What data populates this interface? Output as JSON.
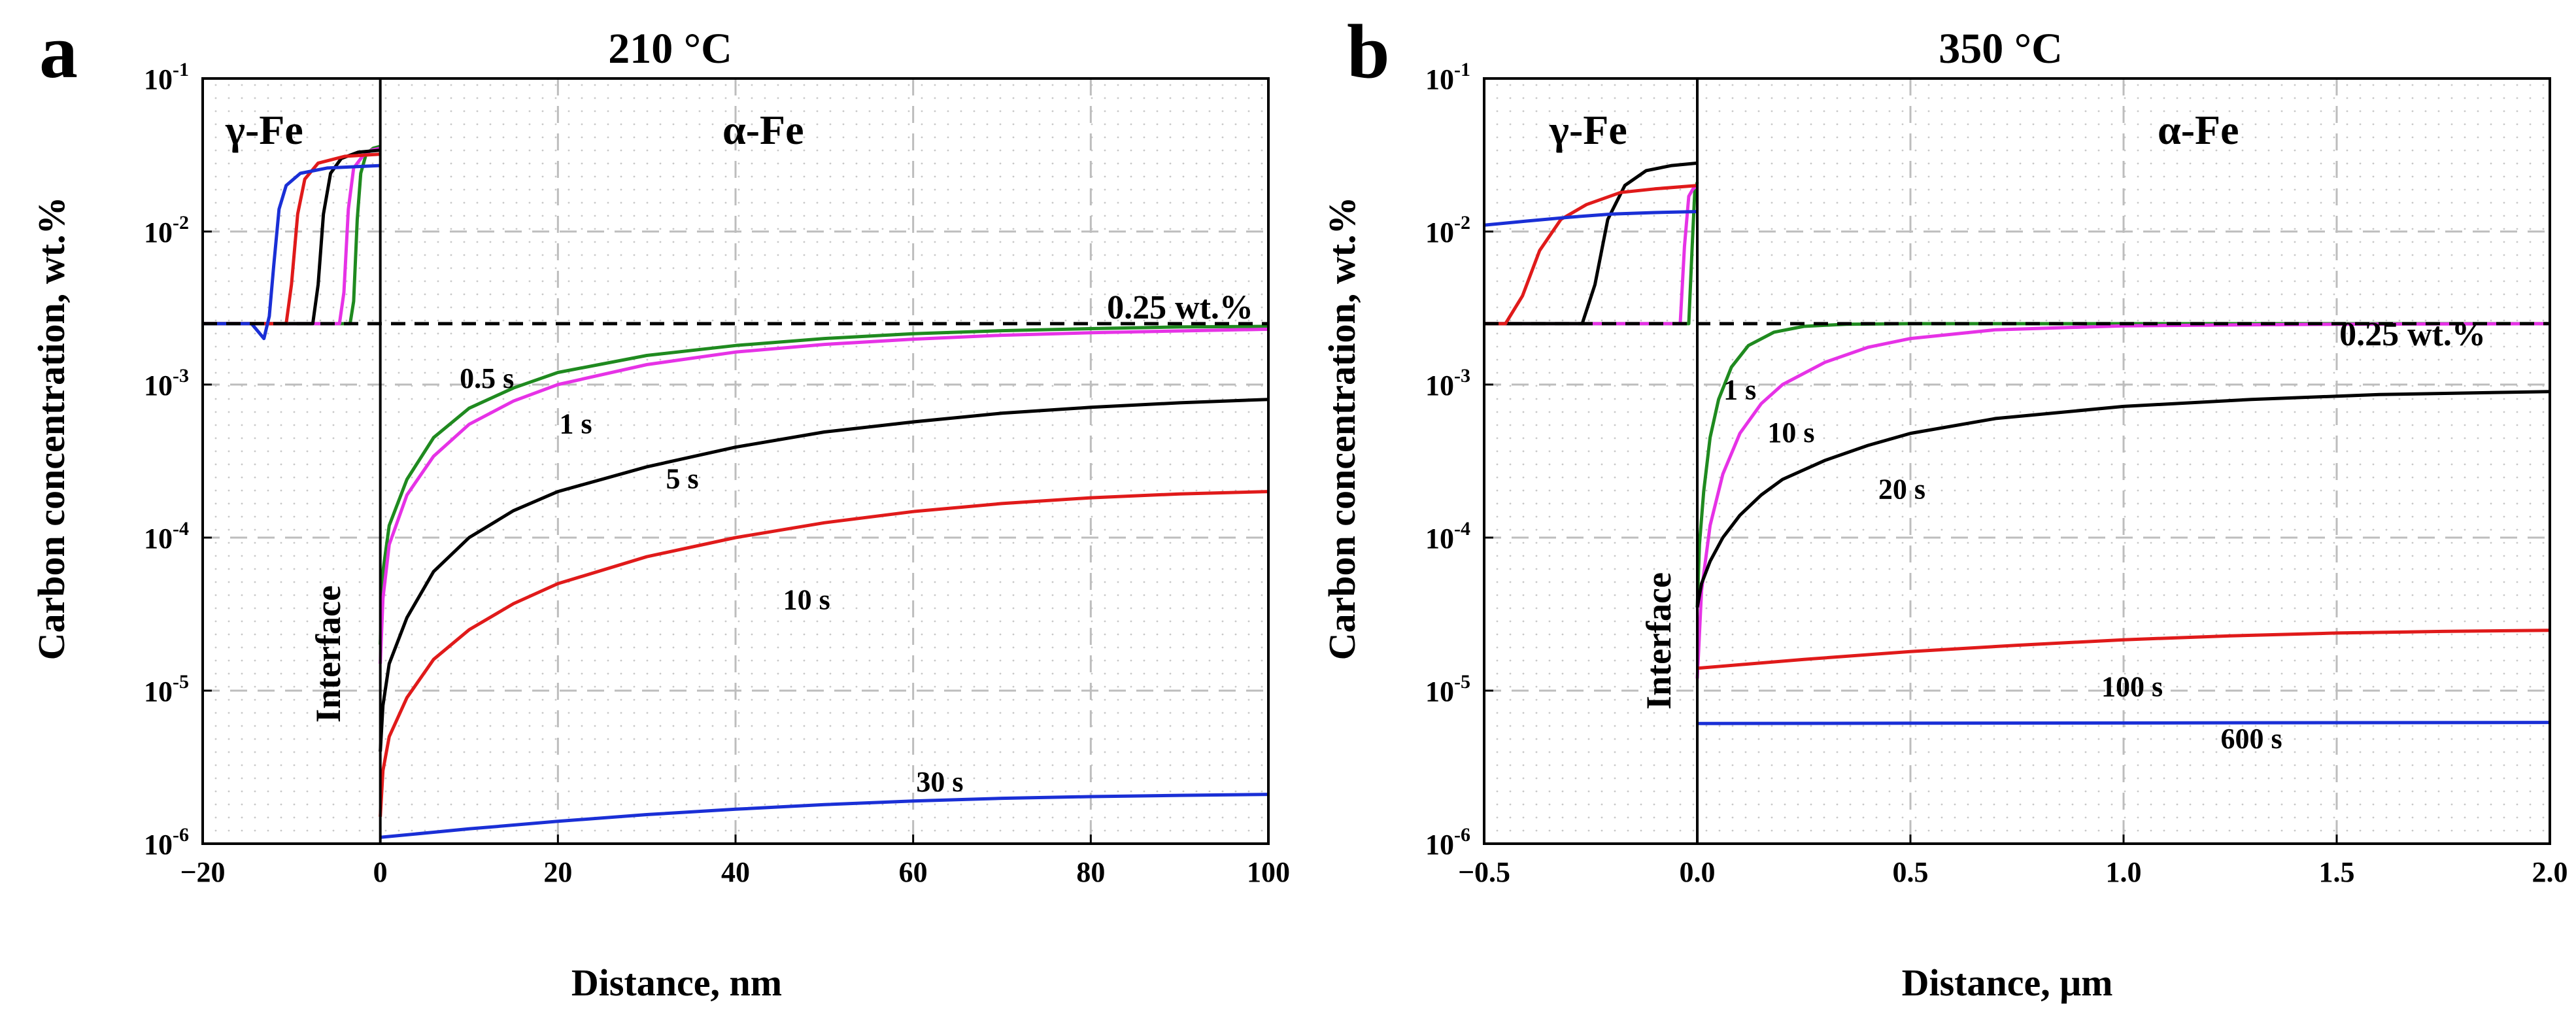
{
  "chart_data": [
    {
      "type": "line",
      "panel_letter": "a",
      "title": "210 °C",
      "xlabel": "Distance, nm",
      "ylabel": "Carbon concentration, wt.%",
      "xlim": [
        -20,
        100
      ],
      "ylim": [
        1e-06,
        0.1
      ],
      "y_scale": "log",
      "x_ticks": [
        -20,
        0,
        20,
        40,
        60,
        80,
        100
      ],
      "x_tick_labels": [
        "−20",
        "0",
        "20",
        "40",
        "60",
        "80",
        "100"
      ],
      "y_tick_labels": [
        {
          "base": "10",
          "exp": "-6"
        },
        {
          "base": "10",
          "exp": "-5"
        },
        {
          "base": "10",
          "exp": "-4"
        },
        {
          "base": "10",
          "exp": "-3"
        },
        {
          "base": "10",
          "exp": "-2"
        },
        {
          "base": "10",
          "exp": "-1"
        }
      ],
      "grid": true,
      "colors": {
        "0.5 s": "#1f8a1f",
        "1 s": "#e632e6",
        "5 s": "#000000",
        "10 s": "#e01a1a",
        "30 s": "#1a2fd6",
        "reference": "#000000"
      },
      "region_labels": {
        "left": "γ-Fe",
        "right": "α-Fe",
        "interface": "Interface"
      },
      "reference_line": {
        "label": "0.25 wt.%",
        "y": 0.0025
      },
      "series": [
        {
          "label": "0.5 s",
          "gamma": [
            [
              -20,
              0.0025
            ],
            [
              -3.4,
              0.0025
            ],
            [
              -3.0,
              0.0035
            ],
            [
              -2.6,
              0.012
            ],
            [
              -2.2,
              0.024
            ],
            [
              -1.6,
              0.032
            ],
            [
              -0.8,
              0.035
            ],
            [
              0,
              0.036
            ]
          ],
          "alpha": [
            [
              0,
              2e-05
            ],
            [
              0.3,
              6e-05
            ],
            [
              1,
              0.00012
            ],
            [
              3,
              0.00024
            ],
            [
              6,
              0.00045
            ],
            [
              10,
              0.0007
            ],
            [
              15,
              0.00095
            ],
            [
              20,
              0.0012
            ],
            [
              30,
              0.00155
            ],
            [
              40,
              0.0018
            ],
            [
              50,
              0.002
            ],
            [
              60,
              0.00215
            ],
            [
              70,
              0.00225
            ],
            [
              80,
              0.00232
            ],
            [
              90,
              0.00238
            ],
            [
              100,
              0.0024
            ]
          ]
        },
        {
          "label": "1 s",
          "gamma": [
            [
              -20,
              0.0025
            ],
            [
              -4.6,
              0.0025
            ],
            [
              -4.1,
              0.004
            ],
            [
              -3.6,
              0.014
            ],
            [
              -3.0,
              0.026
            ],
            [
              -2.0,
              0.031
            ],
            [
              -1.0,
              0.034
            ],
            [
              0,
              0.035
            ]
          ],
          "alpha": [
            [
              0,
              1.5e-05
            ],
            [
              0.3,
              4e-05
            ],
            [
              1,
              9e-05
            ],
            [
              3,
              0.00019
            ],
            [
              6,
              0.00034
            ],
            [
              10,
              0.00055
            ],
            [
              15,
              0.00078
            ],
            [
              20,
              0.001
            ],
            [
              30,
              0.00135
            ],
            [
              40,
              0.00163
            ],
            [
              50,
              0.00183
            ],
            [
              60,
              0.00198
            ],
            [
              70,
              0.0021
            ],
            [
              80,
              0.00218
            ],
            [
              90,
              0.00224
            ],
            [
              100,
              0.0023
            ]
          ]
        },
        {
          "label": "5 s",
          "gamma": [
            [
              -20,
              0.0025
            ],
            [
              -7.6,
              0.0025
            ],
            [
              -7.0,
              0.0045
            ],
            [
              -6.4,
              0.013
            ],
            [
              -5.6,
              0.024
            ],
            [
              -4.4,
              0.03
            ],
            [
              -2.5,
              0.033
            ],
            [
              0,
              0.034
            ]
          ],
          "alpha": [
            [
              0,
              4e-06
            ],
            [
              0.3,
              8e-06
            ],
            [
              1,
              1.5e-05
            ],
            [
              3,
              3e-05
            ],
            [
              6,
              6e-05
            ],
            [
              10,
              0.0001
            ],
            [
              15,
              0.00015
            ],
            [
              20,
              0.0002
            ],
            [
              30,
              0.00029
            ],
            [
              40,
              0.00039
            ],
            [
              50,
              0.00049
            ],
            [
              60,
              0.00057
            ],
            [
              70,
              0.00065
            ],
            [
              80,
              0.00071
            ],
            [
              90,
              0.00076
            ],
            [
              100,
              0.0008
            ]
          ]
        },
        {
          "label": "10 s",
          "gamma": [
            [
              -20,
              0.0025
            ],
            [
              -10.6,
              0.0025
            ],
            [
              -10.0,
              0.0045
            ],
            [
              -9.3,
              0.013
            ],
            [
              -8.5,
              0.022
            ],
            [
              -7.0,
              0.028
            ],
            [
              -4.0,
              0.031
            ],
            [
              0,
              0.032
            ]
          ],
          "alpha": [
            [
              0,
              1.5e-06
            ],
            [
              0.3,
              3e-06
            ],
            [
              1,
              5e-06
            ],
            [
              3,
              9e-06
            ],
            [
              6,
              1.6e-05
            ],
            [
              10,
              2.5e-05
            ],
            [
              15,
              3.7e-05
            ],
            [
              20,
              5e-05
            ],
            [
              30,
              7.5e-05
            ],
            [
              40,
              0.0001
            ],
            [
              50,
              0.000125
            ],
            [
              60,
              0.000148
            ],
            [
              70,
              0.000167
            ],
            [
              80,
              0.000182
            ],
            [
              90,
              0.000193
            ],
            [
              100,
              0.0002
            ]
          ]
        },
        {
          "label": "30 s",
          "gamma": [
            [
              -20,
              0.0025
            ],
            [
              -14.5,
              0.0025
            ],
            [
              -13.7,
              0.0022
            ],
            [
              -13.1,
              0.002
            ],
            [
              -12.5,
              0.0028
            ],
            [
              -12.0,
              0.006
            ],
            [
              -11.4,
              0.014
            ],
            [
              -10.6,
              0.02
            ],
            [
              -9.0,
              0.024
            ],
            [
              -6.0,
              0.026
            ],
            [
              -3.0,
              0.0265
            ],
            [
              0,
              0.027
            ]
          ],
          "alpha": [
            [
              0,
              1.1e-06
            ],
            [
              10,
              1.25e-06
            ],
            [
              20,
              1.4e-06
            ],
            [
              30,
              1.55e-06
            ],
            [
              40,
              1.68e-06
            ],
            [
              50,
              1.8e-06
            ],
            [
              60,
              1.9e-06
            ],
            [
              70,
              1.98e-06
            ],
            [
              80,
              2.03e-06
            ],
            [
              90,
              2.07e-06
            ],
            [
              100,
              2.1e-06
            ]
          ]
        }
      ],
      "annotations": [
        {
          "text": "0.5 s",
          "x": 12,
          "y": 0.00095
        },
        {
          "text": "1 s",
          "x": 22,
          "y": 0.00048
        },
        {
          "text": "5 s",
          "x": 34,
          "y": 0.00021
        },
        {
          "text": "10 s",
          "x": 48,
          "y": 3.4e-05
        },
        {
          "text": "30 s",
          "x": 63,
          "y": 2.2e-06
        }
      ]
    },
    {
      "type": "line",
      "panel_letter": "b",
      "title": "350 °C",
      "xlabel": "Distance, μm",
      "ylabel": "Carbon concentration, wt.%",
      "xlim": [
        -0.5,
        2.0
      ],
      "ylim": [
        1e-06,
        0.1
      ],
      "y_scale": "log",
      "x_ticks": [
        -0.5,
        0.0,
        0.5,
        1.0,
        1.5,
        2.0
      ],
      "x_tick_labels": [
        "−0.5",
        "0.0",
        "0.5",
        "1.0",
        "1.5",
        "2.0"
      ],
      "y_tick_labels": [
        {
          "base": "10",
          "exp": "-6"
        },
        {
          "base": "10",
          "exp": "-5"
        },
        {
          "base": "10",
          "exp": "-4"
        },
        {
          "base": "10",
          "exp": "-3"
        },
        {
          "base": "10",
          "exp": "-2"
        },
        {
          "base": "10",
          "exp": "-1"
        }
      ],
      "grid": true,
      "colors": {
        "1 s": "#1f8a1f",
        "10 s": "#e632e6",
        "20 s": "#000000",
        "100 s": "#e01a1a",
        "600 s": "#1a2fd6",
        "reference": "#000000"
      },
      "region_labels": {
        "left": "γ-Fe",
        "right": "α-Fe",
        "interface": "Interface"
      },
      "reference_line": {
        "label": "0.25 wt.%",
        "y": 0.0025
      },
      "series": [
        {
          "label": "1 s",
          "gamma": [
            [
              -0.5,
              0.0025
            ],
            [
              -0.02,
              0.0025
            ],
            [
              -0.012,
              0.008
            ],
            [
              -0.006,
              0.018
            ],
            [
              0,
              0.021
            ]
          ],
          "alpha": [
            [
              0,
              3.5e-05
            ],
            [
              0.005,
              9e-05
            ],
            [
              0.015,
              0.0002
            ],
            [
              0.03,
              0.00045
            ],
            [
              0.05,
              0.0008
            ],
            [
              0.08,
              0.0013
            ],
            [
              0.12,
              0.0018
            ],
            [
              0.18,
              0.0022
            ],
            [
              0.25,
              0.0024
            ],
            [
              0.35,
              0.00248
            ],
            [
              0.5,
              0.0025
            ],
            [
              2.0,
              0.0025
            ]
          ]
        },
        {
          "label": "10 s",
          "gamma": [
            [
              -0.5,
              0.0025
            ],
            [
              -0.04,
              0.0025
            ],
            [
              -0.03,
              0.008
            ],
            [
              -0.02,
              0.017
            ],
            [
              -0.01,
              0.019
            ],
            [
              0,
              0.02
            ]
          ],
          "alpha": [
            [
              0,
              1.2e-05
            ],
            [
              0.01,
              4.5e-05
            ],
            [
              0.03,
              0.00012
            ],
            [
              0.06,
              0.00026
            ],
            [
              0.1,
              0.00048
            ],
            [
              0.15,
              0.00075
            ],
            [
              0.2,
              0.001
            ],
            [
              0.3,
              0.0014
            ],
            [
              0.4,
              0.00175
            ],
            [
              0.5,
              0.002
            ],
            [
              0.7,
              0.00228
            ],
            [
              1.0,
              0.00242
            ],
            [
              1.5,
              0.00248
            ],
            [
              2.0,
              0.0025
            ]
          ]
        },
        {
          "label": "20 s",
          "gamma": [
            [
              -0.5,
              0.0025
            ],
            [
              -0.27,
              0.0025
            ],
            [
              -0.24,
              0.0045
            ],
            [
              -0.21,
              0.012
            ],
            [
              -0.17,
              0.02
            ],
            [
              -0.12,
              0.025
            ],
            [
              -0.06,
              0.027
            ],
            [
              0,
              0.028
            ]
          ],
          "alpha": [
            [
              0,
              3.5e-05
            ],
            [
              0.01,
              5e-05
            ],
            [
              0.03,
              7e-05
            ],
            [
              0.06,
              0.0001
            ],
            [
              0.1,
              0.00014
            ],
            [
              0.15,
              0.00019
            ],
            [
              0.2,
              0.00024
            ],
            [
              0.3,
              0.00032
            ],
            [
              0.4,
              0.0004
            ],
            [
              0.5,
              0.00048
            ],
            [
              0.7,
              0.0006
            ],
            [
              1.0,
              0.00072
            ],
            [
              1.3,
              0.0008
            ],
            [
              1.6,
              0.00086
            ],
            [
              2.0,
              0.0009
            ]
          ]
        },
        {
          "label": "100 s",
          "gamma": [
            [
              -0.5,
              0.0025
            ],
            [
              -0.45,
              0.0025
            ],
            [
              -0.41,
              0.0038
            ],
            [
              -0.37,
              0.0075
            ],
            [
              -0.32,
              0.012
            ],
            [
              -0.26,
              0.015
            ],
            [
              -0.18,
              0.018
            ],
            [
              -0.1,
              0.019
            ],
            [
              0,
              0.02
            ]
          ],
          "alpha": [
            [
              0,
              1.4e-05
            ],
            [
              0.25,
              1.6e-05
            ],
            [
              0.5,
              1.8e-05
            ],
            [
              0.75,
              1.98e-05
            ],
            [
              1.0,
              2.15e-05
            ],
            [
              1.25,
              2.28e-05
            ],
            [
              1.5,
              2.38e-05
            ],
            [
              1.75,
              2.44e-05
            ],
            [
              2.0,
              2.48e-05
            ]
          ]
        },
        {
          "label": "600 s",
          "gamma": [
            [
              -0.5,
              0.011
            ],
            [
              -0.4,
              0.0117
            ],
            [
              -0.3,
              0.0124
            ],
            [
              -0.2,
              0.013
            ],
            [
              -0.1,
              0.0133
            ],
            [
              0,
              0.0135
            ]
          ],
          "alpha": [
            [
              0,
              6.1e-06
            ],
            [
              2.0,
              6.2e-06
            ]
          ]
        }
      ],
      "annotations": [
        {
          "text": "1 s",
          "x": 0.1,
          "y": 0.0008
        },
        {
          "text": "10 s",
          "x": 0.22,
          "y": 0.00042
        },
        {
          "text": "20 s",
          "x": 0.48,
          "y": 0.00018
        },
        {
          "text": "100 s",
          "x": 1.02,
          "y": 9.2e-06
        },
        {
          "text": "600 s",
          "x": 1.3,
          "y": 4.2e-06
        }
      ]
    }
  ]
}
